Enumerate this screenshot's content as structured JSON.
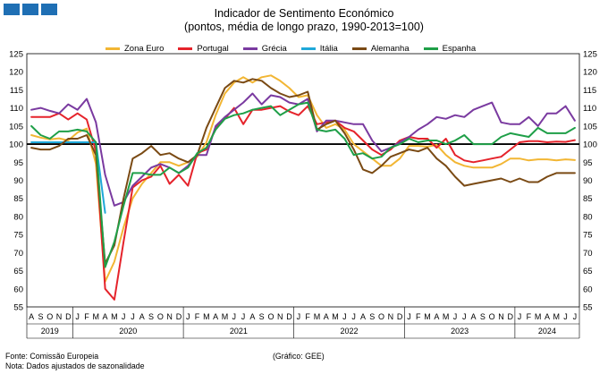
{
  "header": {
    "title": "Indicador de Sentimento Económico",
    "subtitle": "(pontos, média de longo prazo, 1990-2013=100)"
  },
  "footer": {
    "source": "Fonte: Comissão Europeia",
    "note": "Nota: Dados ajustados de sazonalidade",
    "credit": "(Gráfico: GEE)"
  },
  "chart_data": {
    "type": "line",
    "ylim": [
      55,
      125
    ],
    "yticks": [
      55,
      60,
      65,
      70,
      75,
      80,
      85,
      90,
      95,
      100,
      105,
      110,
      115,
      120,
      125
    ],
    "reference_line": 100,
    "grid": false,
    "legend_position": "top",
    "x": [
      "A",
      "S",
      "O",
      "N",
      "D",
      "J",
      "F",
      "M",
      "A",
      "M",
      "J",
      "J",
      "A",
      "S",
      "O",
      "N",
      "D",
      "J",
      "F",
      "M",
      "A",
      "M",
      "J",
      "J",
      "A",
      "S",
      "O",
      "N",
      "D",
      "J",
      "F",
      "M",
      "A",
      "M",
      "J",
      "J",
      "A",
      "S",
      "O",
      "N",
      "D",
      "J",
      "F",
      "M",
      "A",
      "M",
      "J",
      "J",
      "A",
      "S",
      "O",
      "N",
      "D",
      "J",
      "F",
      "M",
      "A",
      "M",
      "J",
      "J"
    ],
    "year_labels": [
      {
        "label": "2019",
        "start": 0,
        "end": 4
      },
      {
        "label": "2020",
        "start": 5,
        "end": 16
      },
      {
        "label": "2021",
        "start": 17,
        "end": 28
      },
      {
        "label": "2022",
        "start": 29,
        "end": 40
      },
      {
        "label": "2023",
        "start": 41,
        "end": 52
      },
      {
        "label": "2024",
        "start": 53,
        "end": 59
      }
    ],
    "series": [
      {
        "name": "Zona Euro",
        "color": "#f2b634",
        "values": [
          102.5,
          101.8,
          101.3,
          101.6,
          101.0,
          103.2,
          104.3,
          94.5,
          62.0,
          67.5,
          77.0,
          85.0,
          89.0,
          92.0,
          95.0,
          95.0,
          94.0,
          95.0,
          96.5,
          100.5,
          108.0,
          114.0,
          117.0,
          118.5,
          117.0,
          118.5,
          119.0,
          117.5,
          115.5,
          113.0,
          113.5,
          108.0,
          104.5,
          105.5,
          104.0,
          100.0,
          98.0,
          96.0,
          94.0,
          94.0,
          96.0,
          99.5,
          99.5,
          99.3,
          99.8,
          97.0,
          95.0,
          94.0,
          93.5,
          93.5,
          93.5,
          94.5,
          96.0,
          96.0,
          95.5,
          95.8,
          95.8,
          95.5,
          95.8,
          95.6
        ],
        "dash": false
      },
      {
        "name": "Portugal",
        "color": "#e5232b",
        "values": [
          107.5,
          107.5,
          107.5,
          108.5,
          106.8,
          108.5,
          106.8,
          98.0,
          60.0,
          57.0,
          73.0,
          88.0,
          90.0,
          91.0,
          94.0,
          89.0,
          91.5,
          88.5,
          97.5,
          98.5,
          104.5,
          107.0,
          110.0,
          105.5,
          109.5,
          109.5,
          110.0,
          110.5,
          109.0,
          108.0,
          110.5,
          105.5,
          106.0,
          106.5,
          104.5,
          103.5,
          101.0,
          98.5,
          97.0,
          98.5,
          101.0,
          102.0,
          101.5,
          101.5,
          99.0,
          101.5,
          97.0,
          95.5,
          95.0,
          95.5,
          96.0,
          96.5,
          98.5,
          100.5,
          100.8,
          100.8,
          100.5,
          100.7,
          100.6,
          101.1
        ],
        "dash": false
      },
      {
        "name": "Grécia",
        "color": "#7a3aa0",
        "values": [
          109.5,
          110.0,
          109.2,
          108.5,
          111.0,
          109.5,
          112.5,
          106.0,
          91.5,
          83.0,
          84.0,
          88.5,
          91.0,
          93.5,
          94.5,
          93.5,
          92.0,
          94.0,
          97.0,
          97.0,
          105.0,
          107.5,
          109.5,
          111.5,
          114.0,
          111.0,
          113.5,
          113.0,
          111.5,
          111.0,
          112.5,
          103.5,
          106.5,
          106.5,
          106.0,
          105.5,
          105.5,
          101.0,
          98.0,
          99.0,
          100.5,
          102.0,
          104.0,
          105.5,
          107.5,
          107.0,
          108.0,
          107.5,
          109.5,
          110.5,
          111.5,
          106.0,
          105.5,
          105.5,
          107.5,
          105.0,
          108.5,
          108.5,
          110.5,
          106.5
        ],
        "dash": false
      },
      {
        "name": "Itália",
        "color": "#1fa8d9",
        "values": [
          100.5,
          100.5,
          100.5,
          100.5,
          100.5,
          100.5,
          100.5,
          100.5,
          81.0,
          null,
          null,
          null,
          null,
          null,
          null,
          null,
          null,
          null,
          null,
          null,
          null,
          null,
          null,
          null,
          null,
          null,
          null,
          null,
          null,
          null,
          null,
          null,
          null,
          null,
          null,
          null,
          null,
          null,
          null,
          null,
          null,
          null,
          null,
          null,
          null,
          null,
          null,
          null,
          null,
          null,
          null,
          null,
          null,
          null,
          null,
          null,
          null,
          null,
          null,
          null
        ],
        "dash": false
      },
      {
        "name": "Alemanha",
        "color": "#7a4a14",
        "values": [
          99.0,
          98.5,
          98.5,
          99.5,
          101.5,
          101.5,
          102.5,
          97.0,
          67.0,
          72.0,
          85.0,
          96.0,
          97.5,
          99.5,
          97.0,
          97.5,
          96.0,
          95.0,
          97.0,
          104.5,
          110.0,
          115.5,
          117.5,
          117.0,
          118.0,
          117.5,
          115.5,
          114.0,
          113.0,
          113.5,
          114.5,
          104.0,
          105.5,
          106.5,
          103.0,
          98.5,
          93.0,
          92.0,
          94.0,
          96.5,
          97.5,
          98.5,
          98.0,
          99.0,
          96.0,
          94.0,
          91.0,
          88.5,
          89.0,
          89.5,
          90.0,
          90.5,
          89.5,
          90.5,
          89.5,
          89.5,
          91.0,
          92.0,
          92.0,
          92.0
        ],
        "dash": false
      },
      {
        "name": "Espanha",
        "color": "#1f9f48",
        "values": [
          105.0,
          102.5,
          101.5,
          103.5,
          103.5,
          104.0,
          103.5,
          100.5,
          66.0,
          73.0,
          83.0,
          92.0,
          92.0,
          91.5,
          91.5,
          93.5,
          92.0,
          93.5,
          97.5,
          99.0,
          104.0,
          107.0,
          108.0,
          108.5,
          109.5,
          110.0,
          110.5,
          108.0,
          109.5,
          111.0,
          111.5,
          104.0,
          103.5,
          104.0,
          101.5,
          97.0,
          97.5,
          96.0,
          96.5,
          99.0,
          100.0,
          101.5,
          100.5,
          101.0,
          101.0,
          100.0,
          101.0,
          102.5,
          100.0,
          100.0,
          100.0,
          102.0,
          103.0,
          102.5,
          102.0,
          104.5,
          103.0,
          103.0,
          103.0,
          104.5
        ],
        "dash": false
      }
    ]
  }
}
